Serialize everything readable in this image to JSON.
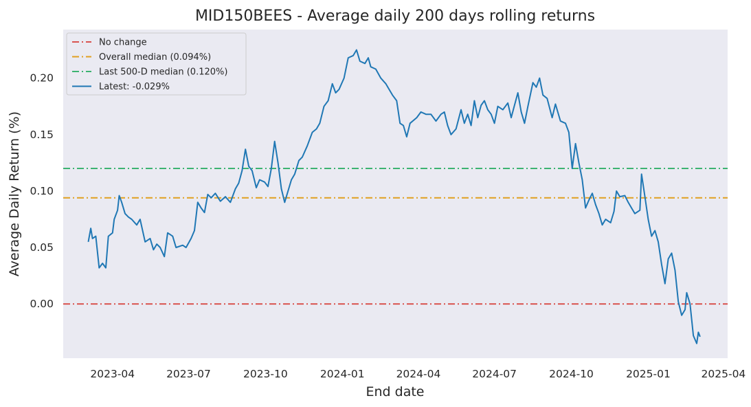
{
  "chart_data": {
    "type": "line",
    "title": "MID150BEES - Average daily 200 days rolling returns",
    "xlabel": "End date",
    "ylabel": "Average Daily Return (%)",
    "x_ticks": [
      "2023-04",
      "2023-07",
      "2023-10",
      "2024-01",
      "2024-04",
      "2024-07",
      "2024-10",
      "2025-01",
      "2025-04"
    ],
    "y_ticks": [
      "0.00",
      "0.05",
      "0.10",
      "0.15",
      "0.20"
    ],
    "xlim": [
      "2023-02-01",
      "2025-04-06"
    ],
    "ylim": [
      -0.048,
      0.243
    ],
    "grid": false,
    "legend_position": "top-left",
    "reference_lines": [
      {
        "name": "No change",
        "value": 0.0,
        "color": "#d9534f"
      },
      {
        "name": "Overall median (0.094%)",
        "value": 0.094,
        "color": "#e0a020"
      },
      {
        "name": "Last 500-D median (0.120%)",
        "value": 0.12,
        "color": "#3cb371"
      }
    ],
    "series": [
      {
        "name": "Latest: -0.029%",
        "color": "#1f77b4",
        "points": [
          [
            "2023-03-03",
            0.055
          ],
          [
            "2023-03-06",
            0.067
          ],
          [
            "2023-03-08",
            0.058
          ],
          [
            "2023-03-12",
            0.06
          ],
          [
            "2023-03-16",
            0.032
          ],
          [
            "2023-03-20",
            0.036
          ],
          [
            "2023-03-24",
            0.032
          ],
          [
            "2023-03-27",
            0.06
          ],
          [
            "2023-04-01",
            0.063
          ],
          [
            "2023-04-03",
            0.075
          ],
          [
            "2023-04-07",
            0.083
          ],
          [
            "2023-04-09",
            0.096
          ],
          [
            "2023-04-12",
            0.09
          ],
          [
            "2023-04-16",
            0.08
          ],
          [
            "2023-04-20",
            0.077
          ],
          [
            "2023-04-24",
            0.075
          ],
          [
            "2023-04-30",
            0.07
          ],
          [
            "2023-05-04",
            0.075
          ],
          [
            "2023-05-10",
            0.055
          ],
          [
            "2023-05-16",
            0.058
          ],
          [
            "2023-05-20",
            0.048
          ],
          [
            "2023-05-24",
            0.053
          ],
          [
            "2023-05-28",
            0.05
          ],
          [
            "2023-06-02",
            0.042
          ],
          [
            "2023-06-06",
            0.063
          ],
          [
            "2023-06-12",
            0.06
          ],
          [
            "2023-06-16",
            0.05
          ],
          [
            "2023-06-24",
            0.052
          ],
          [
            "2023-06-28",
            0.05
          ],
          [
            "2023-07-04",
            0.058
          ],
          [
            "2023-07-08",
            0.065
          ],
          [
            "2023-07-12",
            0.09
          ],
          [
            "2023-07-16",
            0.085
          ],
          [
            "2023-07-20",
            0.081
          ],
          [
            "2023-07-24",
            0.097
          ],
          [
            "2023-07-28",
            0.094
          ],
          [
            "2023-08-02",
            0.098
          ],
          [
            "2023-08-08",
            0.091
          ],
          [
            "2023-08-14",
            0.095
          ],
          [
            "2023-08-20",
            0.09
          ],
          [
            "2023-08-26",
            0.102
          ],
          [
            "2023-08-30",
            0.107
          ],
          [
            "2023-09-03",
            0.118
          ],
          [
            "2023-09-07",
            0.137
          ],
          [
            "2023-09-11",
            0.122
          ],
          [
            "2023-09-15",
            0.118
          ],
          [
            "2023-09-20",
            0.103
          ],
          [
            "2023-09-24",
            0.11
          ],
          [
            "2023-09-30",
            0.108
          ],
          [
            "2023-10-04",
            0.104
          ],
          [
            "2023-10-08",
            0.12
          ],
          [
            "2023-10-12",
            0.144
          ],
          [
            "2023-10-16",
            0.125
          ],
          [
            "2023-10-20",
            0.102
          ],
          [
            "2023-10-24",
            0.09
          ],
          [
            "2023-10-28",
            0.1
          ],
          [
            "2023-11-01",
            0.11
          ],
          [
            "2023-11-05",
            0.115
          ],
          [
            "2023-11-10",
            0.127
          ],
          [
            "2023-11-14",
            0.13
          ],
          [
            "2023-11-20",
            0.14
          ],
          [
            "2023-11-26",
            0.152
          ],
          [
            "2023-12-01",
            0.155
          ],
          [
            "2023-12-05",
            0.16
          ],
          [
            "2023-12-10",
            0.175
          ],
          [
            "2023-12-15",
            0.18
          ],
          [
            "2023-12-20",
            0.195
          ],
          [
            "2023-12-24",
            0.187
          ],
          [
            "2023-12-28",
            0.19
          ],
          [
            "2024-01-03",
            0.2
          ],
          [
            "2024-01-08",
            0.218
          ],
          [
            "2024-01-14",
            0.22
          ],
          [
            "2024-01-18",
            0.225
          ],
          [
            "2024-01-22",
            0.215
          ],
          [
            "2024-01-28",
            0.213
          ],
          [
            "2024-02-01",
            0.218
          ],
          [
            "2024-02-04",
            0.21
          ],
          [
            "2024-02-10",
            0.208
          ],
          [
            "2024-02-16",
            0.2
          ],
          [
            "2024-02-22",
            0.195
          ],
          [
            "2024-03-01",
            0.185
          ],
          [
            "2024-03-06",
            0.18
          ],
          [
            "2024-03-10",
            0.16
          ],
          [
            "2024-03-14",
            0.158
          ],
          [
            "2024-03-18",
            0.148
          ],
          [
            "2024-03-22",
            0.16
          ],
          [
            "2024-03-30",
            0.165
          ],
          [
            "2024-04-04",
            0.17
          ],
          [
            "2024-04-10",
            0.168
          ],
          [
            "2024-04-16",
            0.168
          ],
          [
            "2024-04-22",
            0.162
          ],
          [
            "2024-04-28",
            0.168
          ],
          [
            "2024-05-02",
            0.17
          ],
          [
            "2024-05-06",
            0.158
          ],
          [
            "2024-05-10",
            0.15
          ],
          [
            "2024-05-16",
            0.155
          ],
          [
            "2024-05-22",
            0.172
          ],
          [
            "2024-05-26",
            0.16
          ],
          [
            "2024-05-30",
            0.168
          ],
          [
            "2024-06-03",
            0.158
          ],
          [
            "2024-06-07",
            0.18
          ],
          [
            "2024-06-11",
            0.165
          ],
          [
            "2024-06-15",
            0.176
          ],
          [
            "2024-06-19",
            0.18
          ],
          [
            "2024-06-23",
            0.172
          ],
          [
            "2024-06-27",
            0.168
          ],
          [
            "2024-07-01",
            0.16
          ],
          [
            "2024-07-05",
            0.175
          ],
          [
            "2024-07-11",
            0.172
          ],
          [
            "2024-07-17",
            0.178
          ],
          [
            "2024-07-21",
            0.165
          ],
          [
            "2024-07-25",
            0.176
          ],
          [
            "2024-07-29",
            0.187
          ],
          [
            "2024-08-02",
            0.17
          ],
          [
            "2024-08-06",
            0.16
          ],
          [
            "2024-08-10",
            0.175
          ],
          [
            "2024-08-16",
            0.196
          ],
          [
            "2024-08-20",
            0.192
          ],
          [
            "2024-08-24",
            0.2
          ],
          [
            "2024-08-28",
            0.185
          ],
          [
            "2024-09-02",
            0.182
          ],
          [
            "2024-09-08",
            0.165
          ],
          [
            "2024-09-12",
            0.177
          ],
          [
            "2024-09-18",
            0.162
          ],
          [
            "2024-09-24",
            0.16
          ],
          [
            "2024-09-28",
            0.152
          ],
          [
            "2024-10-02",
            0.12
          ],
          [
            "2024-10-06",
            0.142
          ],
          [
            "2024-10-10",
            0.125
          ],
          [
            "2024-10-14",
            0.11
          ],
          [
            "2024-10-18",
            0.085
          ],
          [
            "2024-10-22",
            0.092
          ],
          [
            "2024-10-26",
            0.098
          ],
          [
            "2024-10-30",
            0.088
          ],
          [
            "2024-11-03",
            0.08
          ],
          [
            "2024-11-07",
            0.07
          ],
          [
            "2024-11-11",
            0.075
          ],
          [
            "2024-11-17",
            0.072
          ],
          [
            "2024-11-21",
            0.082
          ],
          [
            "2024-11-24",
            0.1
          ],
          [
            "2024-11-28",
            0.095
          ],
          [
            "2024-12-04",
            0.096
          ],
          [
            "2024-12-08",
            0.09
          ],
          [
            "2024-12-12",
            0.085
          ],
          [
            "2024-12-16",
            0.08
          ],
          [
            "2024-12-22",
            0.083
          ],
          [
            "2024-12-24",
            0.115
          ],
          [
            "2024-12-28",
            0.095
          ],
          [
            "2025-01-01",
            0.075
          ],
          [
            "2025-01-05",
            0.06
          ],
          [
            "2025-01-09",
            0.065
          ],
          [
            "2025-01-13",
            0.055
          ],
          [
            "2025-01-17",
            0.035
          ],
          [
            "2025-01-21",
            0.018
          ],
          [
            "2025-01-25",
            0.04
          ],
          [
            "2025-01-29",
            0.045
          ],
          [
            "2025-02-02",
            0.03
          ],
          [
            "2025-02-06",
            0.002
          ],
          [
            "2025-02-10",
            -0.01
          ],
          [
            "2025-02-14",
            -0.005
          ],
          [
            "2025-02-16",
            0.01
          ],
          [
            "2025-02-20",
            0.0
          ],
          [
            "2025-02-24",
            -0.028
          ],
          [
            "2025-02-28",
            -0.035
          ],
          [
            "2025-03-02",
            -0.025
          ],
          [
            "2025-03-04",
            -0.029
          ]
        ]
      }
    ]
  }
}
